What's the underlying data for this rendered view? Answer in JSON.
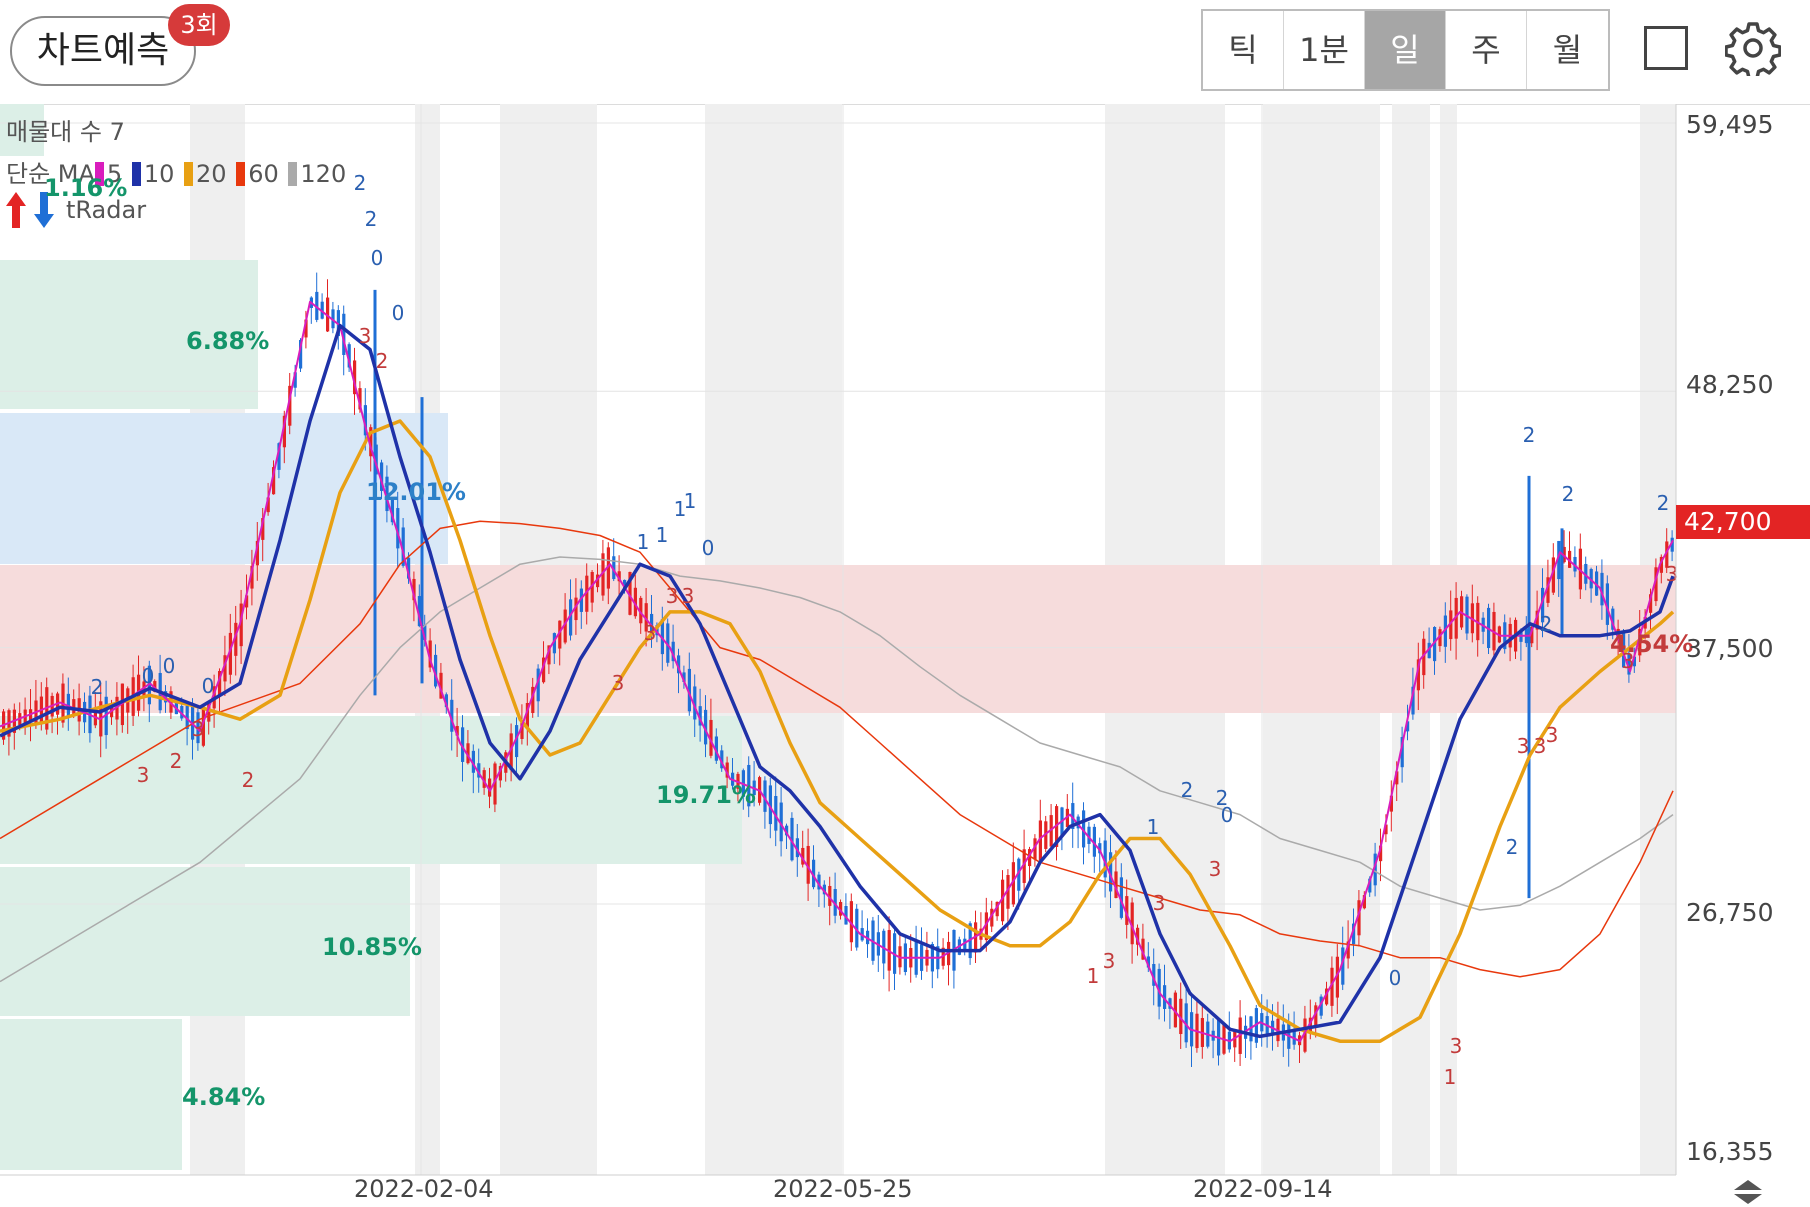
{
  "header": {
    "predict_label": "차트예측",
    "predict_badge": "3회",
    "periods": [
      "틱",
      "1분",
      "일",
      "주",
      "월"
    ],
    "active_period": "일"
  },
  "legend": {
    "volume_profile": "매물대 수 7",
    "ma_title": "단순 MA",
    "ma": [
      {
        "period": "5",
        "color": "#d91dbd"
      },
      {
        "period": "10",
        "color": "#1f32a8"
      },
      {
        "period": "20",
        "color": "#e8a013"
      },
      {
        "period": "60",
        "color": "#e8380d"
      },
      {
        "period": "120",
        "color": "#aaaaaa"
      }
    ],
    "radar_label": "tRadar"
  },
  "volume_profile_pct": [
    "1.16%",
    "6.88%",
    "12.01%",
    "19.71%",
    "10.85%",
    "4.84%"
  ],
  "current_profile_pct": "4.54%",
  "price_axis": [
    "59,495",
    "48,250",
    "37,500",
    "26,750",
    "16,355"
  ],
  "current_price": "42,700",
  "date_axis": [
    "2022-02-04",
    "2022-05-25",
    "2022-09-14"
  ],
  "colors": {
    "up": "#e32424",
    "down": "#1f6fd6",
    "profile_green": "#dcefe7",
    "profile_blue": "#d9e8f7",
    "profile_red": "#f6dcdc",
    "vertical_band": "#efefef"
  },
  "chart_data": {
    "type": "line",
    "title": "",
    "ylim": [
      16355,
      59495
    ],
    "x": [
      "2022-02-04",
      "2022-05-25",
      "2022-09-14"
    ],
    "series": [
      {
        "name": "5",
        "points": [
          [
            0,
            34200
          ],
          [
            60,
            35200
          ],
          [
            100,
            34500
          ],
          [
            150,
            36000
          ],
          [
            200,
            34000
          ],
          [
            240,
            38500
          ],
          [
            280,
            46000
          ],
          [
            310,
            52000
          ],
          [
            340,
            51000
          ],
          [
            370,
            46000
          ],
          [
            400,
            42000
          ],
          [
            430,
            37000
          ],
          [
            460,
            33500
          ],
          [
            490,
            31500
          ],
          [
            520,
            34000
          ],
          [
            550,
            37500
          ],
          [
            580,
            39500
          ],
          [
            610,
            41000
          ],
          [
            640,
            39000
          ],
          [
            670,
            37500
          ],
          [
            700,
            34500
          ],
          [
            730,
            32000
          ],
          [
            760,
            31500
          ],
          [
            790,
            29500
          ],
          [
            820,
            27500
          ],
          [
            860,
            25500
          ],
          [
            900,
            24500
          ],
          [
            940,
            24500
          ],
          [
            980,
            25500
          ],
          [
            1010,
            27500
          ],
          [
            1040,
            29500
          ],
          [
            1070,
            30500
          ],
          [
            1100,
            29000
          ],
          [
            1130,
            26000
          ],
          [
            1160,
            23000
          ],
          [
            1190,
            21500
          ],
          [
            1230,
            21000
          ],
          [
            1260,
            21800
          ],
          [
            1300,
            21000
          ],
          [
            1340,
            24000
          ],
          [
            1380,
            29000
          ],
          [
            1420,
            37000
          ],
          [
            1460,
            39000
          ],
          [
            1500,
            38000
          ],
          [
            1530,
            38000
          ],
          [
            1560,
            41500
          ],
          [
            1600,
            40000
          ],
          [
            1630,
            36500
          ],
          [
            1660,
            41000
          ],
          [
            1673,
            42000
          ]
        ]
      },
      {
        "name": "10",
        "points": [
          [
            0,
            33800
          ],
          [
            60,
            35000
          ],
          [
            100,
            34800
          ],
          [
            150,
            35800
          ],
          [
            200,
            35000
          ],
          [
            240,
            36000
          ],
          [
            280,
            42000
          ],
          [
            310,
            47000
          ],
          [
            340,
            51000
          ],
          [
            370,
            50000
          ],
          [
            400,
            45500
          ],
          [
            430,
            41500
          ],
          [
            460,
            37000
          ],
          [
            490,
            33500
          ],
          [
            520,
            32000
          ],
          [
            550,
            34000
          ],
          [
            580,
            37000
          ],
          [
            610,
            39000
          ],
          [
            640,
            41000
          ],
          [
            670,
            40500
          ],
          [
            700,
            38500
          ],
          [
            730,
            35500
          ],
          [
            760,
            32500
          ],
          [
            790,
            31500
          ],
          [
            820,
            30000
          ],
          [
            860,
            27500
          ],
          [
            900,
            25500
          ],
          [
            940,
            24800
          ],
          [
            980,
            24800
          ],
          [
            1010,
            26000
          ],
          [
            1040,
            28500
          ],
          [
            1070,
            30000
          ],
          [
            1100,
            30500
          ],
          [
            1130,
            29000
          ],
          [
            1160,
            25500
          ],
          [
            1190,
            23000
          ],
          [
            1230,
            21500
          ],
          [
            1260,
            21200
          ],
          [
            1300,
            21500
          ],
          [
            1340,
            21800
          ],
          [
            1380,
            24500
          ],
          [
            1420,
            29500
          ],
          [
            1460,
            34500
          ],
          [
            1500,
            37500
          ],
          [
            1530,
            38500
          ],
          [
            1560,
            38000
          ],
          [
            1600,
            38000
          ],
          [
            1630,
            38200
          ],
          [
            1660,
            39000
          ],
          [
            1673,
            40500
          ]
        ]
      },
      {
        "name": "20",
        "points": [
          [
            0,
            34000
          ],
          [
            60,
            34500
          ],
          [
            100,
            35000
          ],
          [
            150,
            35500
          ],
          [
            200,
            35000
          ],
          [
            240,
            34500
          ],
          [
            280,
            35500
          ],
          [
            310,
            39500
          ],
          [
            340,
            44000
          ],
          [
            370,
            46500
          ],
          [
            400,
            47000
          ],
          [
            430,
            45500
          ],
          [
            460,
            42000
          ],
          [
            490,
            38000
          ],
          [
            520,
            34500
          ],
          [
            550,
            33000
          ],
          [
            580,
            33500
          ],
          [
            610,
            35500
          ],
          [
            640,
            37500
          ],
          [
            670,
            39000
          ],
          [
            700,
            39000
          ],
          [
            730,
            38500
          ],
          [
            760,
            36500
          ],
          [
            790,
            33500
          ],
          [
            820,
            31000
          ],
          [
            860,
            29500
          ],
          [
            900,
            28000
          ],
          [
            940,
            26500
          ],
          [
            980,
            25500
          ],
          [
            1010,
            25000
          ],
          [
            1040,
            25000
          ],
          [
            1070,
            26000
          ],
          [
            1100,
            28000
          ],
          [
            1130,
            29500
          ],
          [
            1160,
            29500
          ],
          [
            1190,
            28000
          ],
          [
            1230,
            25000
          ],
          [
            1260,
            22500
          ],
          [
            1300,
            21500
          ],
          [
            1340,
            21000
          ],
          [
            1380,
            21000
          ],
          [
            1420,
            22000
          ],
          [
            1460,
            25500
          ],
          [
            1500,
            30000
          ],
          [
            1530,
            33000
          ],
          [
            1560,
            35000
          ],
          [
            1600,
            36500
          ],
          [
            1630,
            37500
          ],
          [
            1660,
            38500
          ],
          [
            1673,
            39000
          ]
        ]
      },
      {
        "name": "60",
        "points": [
          [
            0,
            29500
          ],
          [
            100,
            32000
          ],
          [
            200,
            34500
          ],
          [
            300,
            36000
          ],
          [
            360,
            38500
          ],
          [
            400,
            41000
          ],
          [
            440,
            42500
          ],
          [
            480,
            42800
          ],
          [
            520,
            42700
          ],
          [
            560,
            42500
          ],
          [
            600,
            42200
          ],
          [
            640,
            41500
          ],
          [
            680,
            39500
          ],
          [
            720,
            37500
          ],
          [
            760,
            37000
          ],
          [
            800,
            36000
          ],
          [
            840,
            35000
          ],
          [
            880,
            33500
          ],
          [
            920,
            32000
          ],
          [
            960,
            30500
          ],
          [
            1000,
            29500
          ],
          [
            1040,
            28500
          ],
          [
            1080,
            28000
          ],
          [
            1120,
            27500
          ],
          [
            1160,
            27000
          ],
          [
            1200,
            26500
          ],
          [
            1240,
            26300
          ],
          [
            1280,
            25500
          ],
          [
            1320,
            25200
          ],
          [
            1360,
            25000
          ],
          [
            1400,
            24500
          ],
          [
            1440,
            24500
          ],
          [
            1480,
            24000
          ],
          [
            1520,
            23700
          ],
          [
            1560,
            24000
          ],
          [
            1600,
            25500
          ],
          [
            1640,
            28500
          ],
          [
            1673,
            31500
          ]
        ]
      },
      {
        "name": "120",
        "points": [
          [
            0,
            23500
          ],
          [
            100,
            26000
          ],
          [
            200,
            28500
          ],
          [
            300,
            32000
          ],
          [
            360,
            35500
          ],
          [
            400,
            37500
          ],
          [
            440,
            39000
          ],
          [
            480,
            40000
          ],
          [
            520,
            41000
          ],
          [
            560,
            41300
          ],
          [
            600,
            41200
          ],
          [
            640,
            41000
          ],
          [
            680,
            40500
          ],
          [
            720,
            40300
          ],
          [
            760,
            40000
          ],
          [
            800,
            39600
          ],
          [
            840,
            39000
          ],
          [
            880,
            38000
          ],
          [
            920,
            36700
          ],
          [
            960,
            35500
          ],
          [
            1000,
            34500
          ],
          [
            1040,
            33500
          ],
          [
            1080,
            33000
          ],
          [
            1120,
            32500
          ],
          [
            1160,
            31500
          ],
          [
            1200,
            31000
          ],
          [
            1240,
            30500
          ],
          [
            1280,
            29500
          ],
          [
            1320,
            29000
          ],
          [
            1360,
            28500
          ],
          [
            1400,
            27500
          ],
          [
            1440,
            27000
          ],
          [
            1480,
            26500
          ],
          [
            1520,
            26700
          ],
          [
            1560,
            27500
          ],
          [
            1600,
            28500
          ],
          [
            1640,
            29500
          ],
          [
            1673,
            30500
          ]
        ]
      }
    ]
  }
}
